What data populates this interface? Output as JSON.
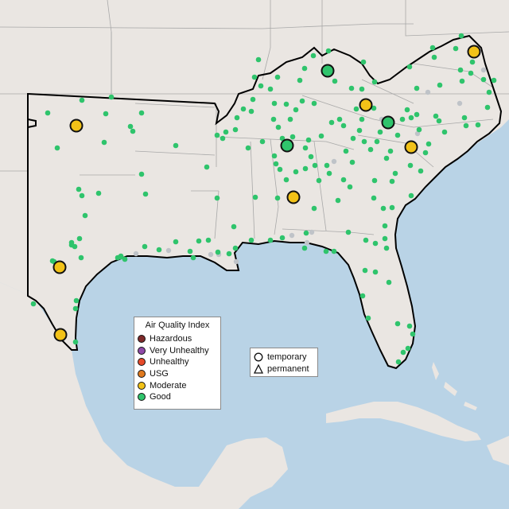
{
  "legend": {
    "title": "Air Quality Index",
    "categories": [
      {
        "label": "Hazardous",
        "color": "#7e2a2a"
      },
      {
        "label": "Very Unhealthy",
        "color": "#8f4aa8"
      },
      {
        "label": "Unhealthy",
        "color": "#e64a2a"
      },
      {
        "label": "USG",
        "color": "#e07a1e"
      },
      {
        "label": "Moderate",
        "color": "#f2c218"
      },
      {
        "label": "Good",
        "color": "#2fc46c"
      }
    ]
  },
  "shape_legend": {
    "items": [
      {
        "label": "temporary",
        "shape": "circle-icon"
      },
      {
        "label": "permanent",
        "shape": "triangle-icon"
      }
    ]
  },
  "colors": {
    "water": "#b9d3e6",
    "land": "#eae6e2",
    "outline": "#000000",
    "state_border": "#a8a8a8",
    "gray_station": "#bfc3c8"
  }
}
